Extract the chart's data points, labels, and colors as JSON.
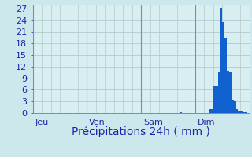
{
  "xlabel": "Précipitations 24h ( mm )",
  "ylim": [
    0,
    28
  ],
  "yticks": [
    0,
    3,
    6,
    9,
    12,
    15,
    18,
    21,
    24,
    27
  ],
  "background_color": "#cce8ec",
  "plot_bg_color": "#d8eef0",
  "bar_color": "#1060d0",
  "grid_color": "#b0cccc",
  "vline_color": "#888899",
  "tick_label_color": "#2222aa",
  "xlabel_color": "#2222aa",
  "day_labels": [
    "Jeu",
    "Ven",
    "Sam",
    "Dim"
  ],
  "day_positions": [
    0,
    24,
    48,
    72
  ],
  "n_bars": 96,
  "xlabel_fontsize": 10,
  "tick_fontsize": 8,
  "day_label_fontsize": 8,
  "values": [
    0,
    0,
    0,
    0,
    0,
    0,
    0,
    0,
    0,
    0,
    0,
    0,
    0,
    0,
    0,
    0,
    0,
    0,
    0,
    0,
    0,
    0,
    0,
    0,
    0,
    0,
    0,
    0,
    0,
    0,
    0,
    0,
    0,
    0,
    0,
    0,
    0,
    0,
    0,
    0,
    0,
    0,
    0,
    0,
    0,
    0,
    0,
    0,
    0,
    0,
    0,
    0,
    0,
    0,
    0,
    0,
    0,
    0,
    0,
    0,
    0,
    0,
    0,
    0,
    0,
    0.3,
    0,
    0,
    0,
    0,
    0,
    0,
    0,
    0,
    0,
    0,
    0,
    0,
    1.0,
    1.0,
    7.0,
    7.2,
    10.5,
    27.2,
    23.5,
    19.5,
    11.0,
    10.5,
    3.5,
    3.0,
    1.0,
    0.5,
    0.4,
    0.3,
    0.3
  ]
}
